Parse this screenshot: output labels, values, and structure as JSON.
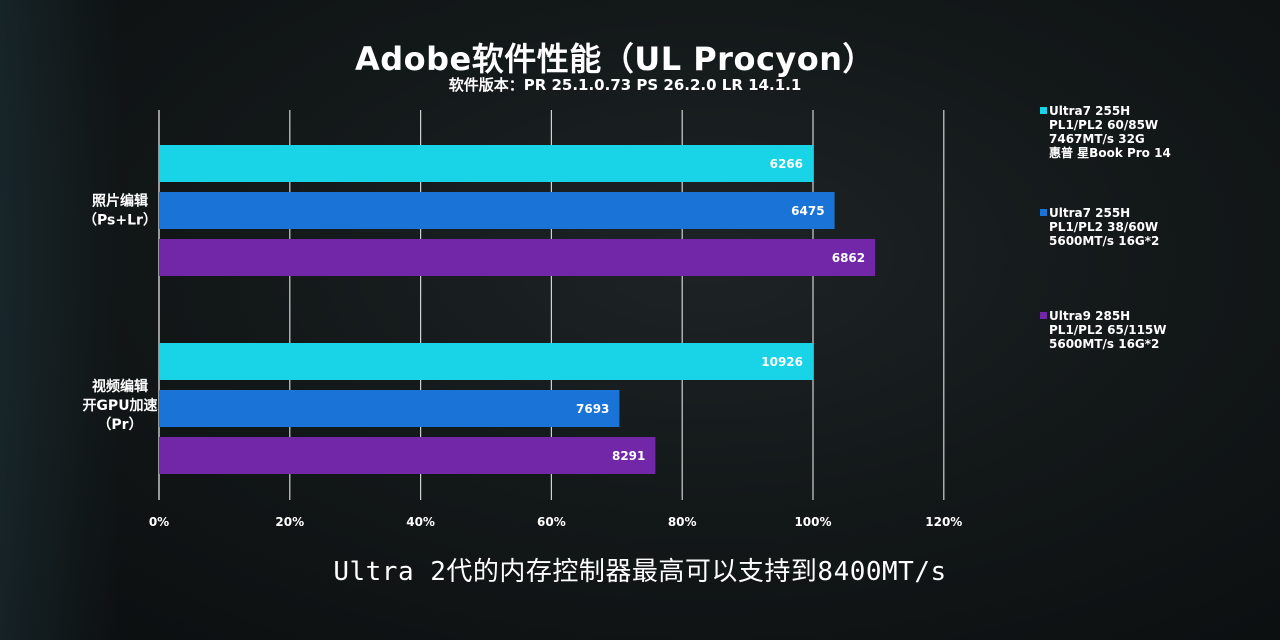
{
  "chart_data": {
    "type": "bar",
    "orientation": "horizontal",
    "title": "Adobe软件性能（UL Procyon）",
    "subtitle": "软件版本：PR 25.1.0.73  PS 26.2.0  LR 14.1.1",
    "categories": [
      [
        "照片编辑",
        "（Ps+Lr）"
      ],
      [
        "视频编辑",
        "开GPU加速",
        "（Pr）"
      ]
    ],
    "series": [
      {
        "name": [
          "Ultra7 255H",
          "PL1/PL2 60/85W",
          "7467MT/s 32G",
          "惠普 星Book Pro 14"
        ],
        "color": "#19d3e6",
        "percent": [
          100,
          100
        ],
        "labels": [
          "6266",
          "10926"
        ]
      },
      {
        "name": [
          "Ultra7 255H",
          "PL1/PL2 38/60W",
          "5600MT/s 16G*2"
        ],
        "color": "#1a73d6",
        "percent": [
          103.3,
          70.4
        ],
        "labels": [
          "6475",
          "7693"
        ]
      },
      {
        "name": [
          "Ultra9 285H",
          "PL1/PL2 65/115W",
          "5600MT/s 16G*2"
        ],
        "color": "#7226a8",
        "percent": [
          109.5,
          75.9
        ],
        "labels": [
          "6862",
          "8291"
        ]
      }
    ],
    "xlim": [
      0,
      120
    ],
    "xticks": [
      "0%",
      "20%",
      "40%",
      "60%",
      "80%",
      "100%",
      "120%"
    ],
    "grid": true,
    "legend_position": "right"
  },
  "caption": "Ultra 2代的内存控制器最高可以支持到8400MT/s"
}
